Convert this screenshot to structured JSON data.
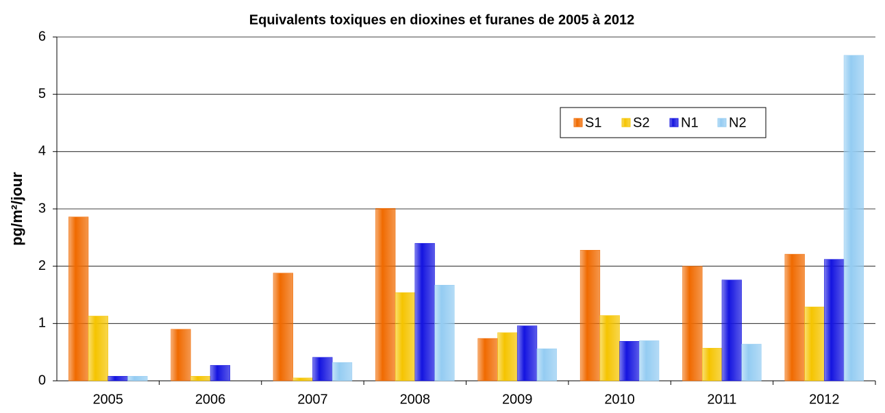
{
  "chart_data": {
    "type": "bar",
    "title": "Equivalents toxiques en dioxines et furanes de 2005 à 2012",
    "y_label": "pg/m²/jour",
    "categories": [
      "2005",
      "2006",
      "2007",
      "2008",
      "2009",
      "2010",
      "2011",
      "2012"
    ],
    "series": [
      {
        "name": "S1",
        "color": "#f06a00",
        "values": [
          2.86,
          0.9,
          1.88,
          3.01,
          0.74,
          2.28,
          2.0,
          2.21
        ]
      },
      {
        "name": "S2",
        "color": "#f5c400",
        "values": [
          1.13,
          0.08,
          0.05,
          1.54,
          0.84,
          1.14,
          0.57,
          1.29
        ]
      },
      {
        "name": "N1",
        "color": "#1414e0",
        "values": [
          0.08,
          0.27,
          0.41,
          2.4,
          0.96,
          0.69,
          1.76,
          2.12
        ]
      },
      {
        "name": "N2",
        "color": "#94ccf2",
        "values": [
          0.08,
          null,
          0.32,
          1.67,
          0.56,
          0.7,
          0.64,
          5.68
        ]
      }
    ],
    "ylim": [
      0,
      6
    ],
    "yticks": [
      0,
      1,
      2,
      3,
      4,
      5,
      6
    ],
    "grid": true,
    "legend": "upper right"
  }
}
